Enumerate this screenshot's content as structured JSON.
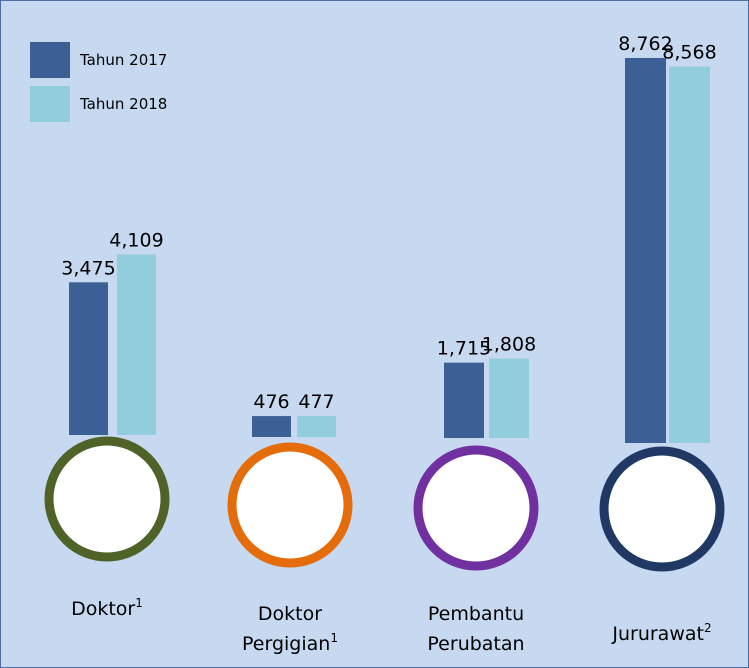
{
  "chart_data": {
    "type": "bar",
    "categories": [
      [
        "Doktor"
      ],
      [
        "Doktor",
        "Pergigian"
      ],
      [
        "Pembantu",
        "Perubatan"
      ],
      [
        "Jururawat"
      ]
    ],
    "superscripts": [
      "1",
      "1",
      null,
      "2"
    ],
    "series": [
      {
        "name": "Tahun 2017",
        "color": "#3b6096",
        "values": [
          3475,
          476,
          1715,
          8762
        ],
        "value_labels": [
          "3,475",
          "476",
          "1,715",
          "8,762"
        ]
      },
      {
        "name": "Tahun 2018",
        "color": "#92cddd",
        "values": [
          4109,
          477,
          1808,
          8568
        ],
        "value_labels": [
          "4,109",
          "477",
          "1,808",
          "8,568"
        ]
      }
    ],
    "ring_colors": [
      "#4f6228",
      "#e46c0a",
      "#7030a0",
      "#1f3864"
    ],
    "legend": "top-left"
  }
}
